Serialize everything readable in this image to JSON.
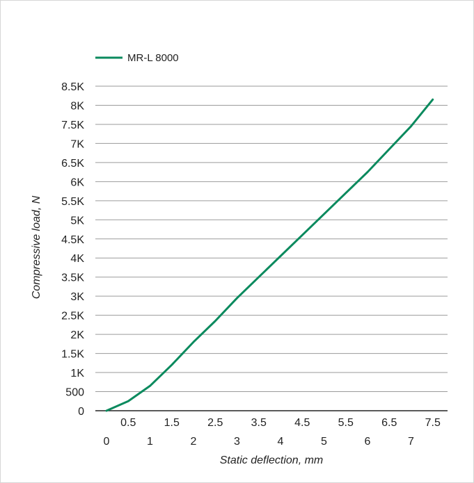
{
  "chart_data": {
    "type": "line",
    "title": "",
    "xlabel": "Static deflection, mm",
    "ylabel": "Compressive load, N",
    "xlim": [
      0,
      7.5
    ],
    "ylim": [
      0,
      8500
    ],
    "grid": "horizontal",
    "legend_position": "top-left",
    "x_ticks": [
      "0",
      "0.5",
      "1",
      "1.5",
      "2",
      "2.5",
      "3",
      "3.5",
      "4",
      "4.5",
      "5",
      "5.5",
      "6",
      "6.5",
      "7",
      "7.5"
    ],
    "y_ticks": [
      "0",
      "500",
      "1K",
      "1.5K",
      "2K",
      "2.5K",
      "3K",
      "3.5K",
      "4K",
      "4.5K",
      "5K",
      "5.5K",
      "6K",
      "6.5K",
      "7K",
      "7.5K",
      "8K",
      "8.5K"
    ],
    "series": [
      {
        "name": "MR-L 8000",
        "color": "#0b8a5e",
        "x": [
          0,
          0.5,
          1,
          1.5,
          2,
          2.5,
          3,
          3.5,
          4,
          4.5,
          5,
          5.5,
          6,
          6.5,
          7,
          7.5
        ],
        "y": [
          0,
          250,
          650,
          1200,
          1800,
          2350,
          2950,
          3500,
          4050,
          4600,
          5150,
          5700,
          6250,
          6850,
          7450,
          8150
        ]
      }
    ]
  }
}
